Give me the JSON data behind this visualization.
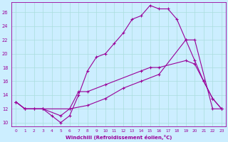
{
  "xlabel": "Windchill (Refroidissement éolien,°C)",
  "bg_color": "#cceeff",
  "line_color": "#990099",
  "grid_color": "#aadddd",
  "xlim": [
    -0.5,
    23.5
  ],
  "ylim": [
    9.5,
    27.5
  ],
  "yticks": [
    10,
    12,
    14,
    16,
    18,
    20,
    22,
    24,
    26
  ],
  "xticks": [
    0,
    1,
    2,
    3,
    4,
    5,
    6,
    7,
    8,
    9,
    10,
    11,
    12,
    13,
    14,
    15,
    16,
    17,
    18,
    19,
    20,
    21,
    22,
    23
  ],
  "series": [
    {
      "x": [
        0,
        1,
        2,
        3,
        4,
        5,
        6,
        7,
        8,
        9,
        10,
        11,
        12,
        13,
        14,
        15,
        16,
        17,
        18,
        19,
        20,
        21,
        22,
        23
      ],
      "y": [
        13,
        12,
        12,
        12,
        11,
        10,
        11,
        14,
        17.5,
        19.5,
        20,
        21.5,
        23,
        25,
        25.5,
        27,
        26.5,
        26.5,
        25,
        22,
        19,
        16,
        13.5,
        12
      ]
    },
    {
      "x": [
        0,
        1,
        2,
        3,
        5,
        6,
        7,
        8,
        10,
        14,
        15,
        16,
        19,
        20,
        21,
        22,
        23
      ],
      "y": [
        13,
        12,
        12,
        12,
        11,
        12,
        14.5,
        14.5,
        15.5,
        17.5,
        18,
        18,
        19,
        18.5,
        16,
        13.5,
        12
      ]
    },
    {
      "x": [
        0,
        1,
        3,
        6,
        8,
        10,
        12,
        14,
        16,
        19,
        20,
        22,
        23
      ],
      "y": [
        13,
        12,
        12,
        12,
        12.5,
        13.5,
        15,
        16,
        17,
        22,
        22,
        12,
        12
      ]
    }
  ]
}
